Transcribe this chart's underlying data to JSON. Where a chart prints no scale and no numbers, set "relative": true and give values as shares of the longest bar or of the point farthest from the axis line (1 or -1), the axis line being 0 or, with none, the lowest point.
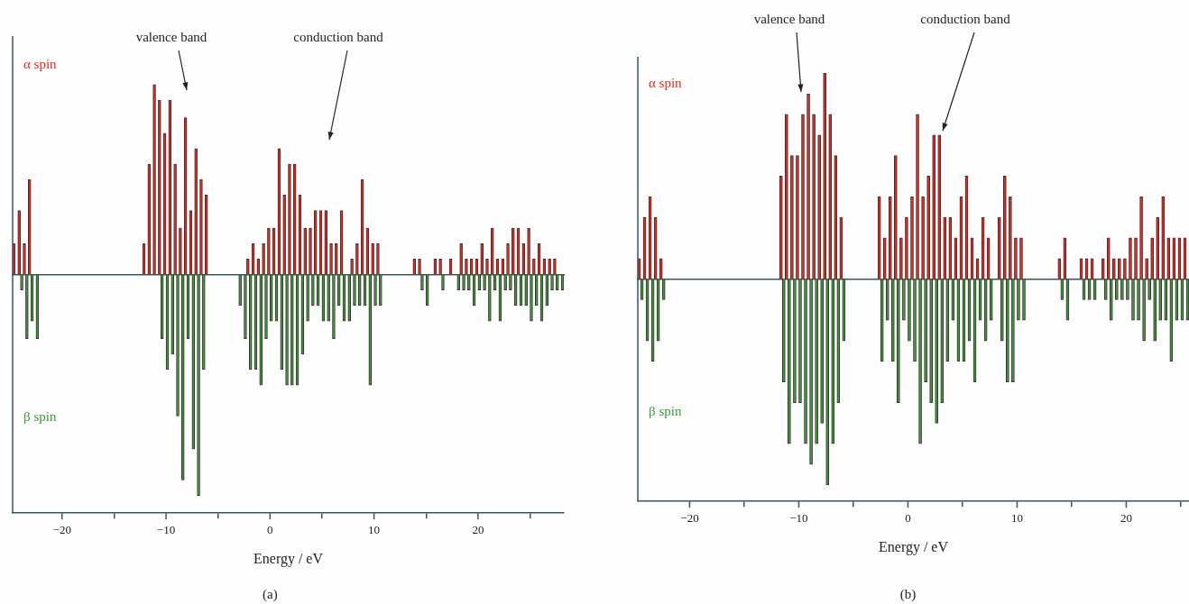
{
  "chart_data": [
    {
      "type": "bar",
      "relative": true,
      "xlabel": "Energy / eV",
      "xlim": [
        -24.75,
        28.25
      ],
      "xticks": [
        -20,
        -10,
        0,
        10,
        20
      ],
      "x": [
        -24.5,
        -24,
        -23.5,
        -23,
        -22.5,
        -12,
        -11.5,
        -11,
        -10.5,
        -10,
        -9.5,
        -9,
        -8.5,
        -8,
        -7.5,
        -7,
        -6.5,
        -6,
        -3,
        -2.5,
        -2,
        -1.5,
        -1,
        -0.5,
        0,
        0.5,
        1,
        1.5,
        2,
        2.5,
        3,
        3.5,
        4,
        4.5,
        5,
        5.5,
        6,
        6.5,
        7,
        7.5,
        8,
        8.5,
        9,
        9.5,
        10,
        10.5,
        14,
        14.5,
        15,
        16,
        16.5,
        17.5,
        18,
        18.5,
        19,
        19.5,
        20,
        20.5,
        21,
        21.5,
        22,
        22.5,
        23,
        23.5,
        24,
        24.5,
        25,
        25.5,
        26,
        26.5,
        27,
        27.5,
        28
      ],
      "series": [
        {
          "name": "α spin",
          "color": "#e8281e",
          "values": [
            0.14,
            0.29,
            0.14,
            0.43,
            null,
            0.14,
            0.5,
            0.86,
            0.79,
            0.64,
            0.79,
            0.5,
            0.21,
            0.71,
            0.29,
            0.57,
            0.43,
            0.36,
            null,
            null,
            0.07,
            0.14,
            0.07,
            0.14,
            0.21,
            0.21,
            0.57,
            0.36,
            0.5,
            0.5,
            0.36,
            0.21,
            0.21,
            0.29,
            0.29,
            0.29,
            0.14,
            0.14,
            0.29,
            null,
            0.07,
            0.14,
            0.43,
            0.21,
            0.14,
            0.14,
            0.07,
            0.07,
            null,
            0.07,
            0.07,
            0.07,
            null,
            0.14,
            0.07,
            0.07,
            0.07,
            0.14,
            0.07,
            0.21,
            0.07,
            0.07,
            0.14,
            0.21,
            0.21,
            0.14,
            0.21,
            0.07,
            0.14,
            0.07,
            0.07,
            0.07,
            null
          ]
        },
        {
          "name": "β spin",
          "color": "#3c9a3a",
          "values": [
            null,
            -0.07,
            -0.29,
            -0.21,
            -0.29,
            null,
            null,
            null,
            -0.29,
            -0.43,
            -0.36,
            -0.64,
            -0.93,
            -0.29,
            -0.79,
            -1,
            -0.43,
            null,
            -0.14,
            -0.29,
            -0.43,
            -0.43,
            -0.5,
            -0.29,
            -0.21,
            -0.21,
            -0.43,
            -0.5,
            -0.5,
            -0.5,
            -0.36,
            -0.21,
            -0.14,
            -0.14,
            -0.21,
            -0.21,
            -0.29,
            -0.14,
            -0.21,
            -0.21,
            -0.14,
            -0.14,
            -0.14,
            -0.5,
            -0.14,
            -0.14,
            null,
            -0.07,
            -0.14,
            null,
            -0.07,
            null,
            -0.07,
            -0.07,
            -0.07,
            -0.14,
            -0.07,
            -0.07,
            -0.21,
            -0.07,
            -0.21,
            -0.07,
            -0.07,
            -0.14,
            -0.14,
            -0.14,
            -0.21,
            -0.14,
            -0.21,
            -0.14,
            -0.07,
            -0.07,
            -0.07
          ]
        }
      ],
      "annotations": [
        "valence band",
        "conduction band",
        "(a)"
      ]
    },
    {
      "type": "bar",
      "relative": true,
      "xlabel": "Energy / eV",
      "xlim": [
        -24.75,
        25.75
      ],
      "xticks": [
        -20,
        -10,
        0,
        10,
        20
      ],
      "x": [
        -24.5,
        -24,
        -23.5,
        -23,
        -22.5,
        -11.5,
        -11,
        -10.5,
        -10,
        -9.5,
        -9,
        -8.5,
        -8,
        -7.5,
        -7,
        -6.5,
        -6,
        -2.5,
        -2,
        -1.5,
        -1,
        -0.5,
        0,
        0.5,
        1,
        1.5,
        2,
        2.5,
        3,
        3.5,
        4,
        4.5,
        5,
        5.5,
        6,
        6.5,
        7,
        7.5,
        8.5,
        9,
        9.5,
        10,
        10.5,
        14,
        14.5,
        16,
        16.5,
        17,
        18,
        18.5,
        19,
        19.5,
        20,
        20.5,
        21,
        21.5,
        22,
        22.5,
        23,
        23.5,
        24,
        24.5,
        25,
        25.5
      ],
      "series": [
        {
          "name": "α spin",
          "color": "#e8281e",
          "values": [
            0.1,
            0.3,
            0.4,
            0.3,
            0.1,
            0.5,
            0.8,
            0.6,
            0.6,
            0.8,
            0.9,
            0.8,
            0.7,
            1,
            0.8,
            0.6,
            0.3,
            0.4,
            0.2,
            0.4,
            0.6,
            0.2,
            0.3,
            0.4,
            0.8,
            0.4,
            0.5,
            0.7,
            0.7,
            0.3,
            0.3,
            0.2,
            0.4,
            0.5,
            0.2,
            0.1,
            0.3,
            0.2,
            0.3,
            0.5,
            0.4,
            0.2,
            0.2,
            0.1,
            0.2,
            0.1,
            0.1,
            0.1,
            0.1,
            0.2,
            0.1,
            0.1,
            0.1,
            0.2,
            0.2,
            0.4,
            0.1,
            0.2,
            0.3,
            0.4,
            0.2,
            0.2,
            0.2,
            0.2
          ]
        },
        {
          "name": "β spin",
          "color": "#3c9a3a",
          "values": [
            -0.1,
            -0.3,
            -0.4,
            -0.3,
            -0.1,
            -0.5,
            -0.8,
            -0.6,
            -0.6,
            -0.8,
            -0.9,
            -0.8,
            -0.7,
            -1,
            -0.8,
            -0.6,
            -0.3,
            -0.4,
            -0.2,
            -0.4,
            -0.6,
            -0.2,
            -0.3,
            -0.4,
            -0.8,
            -0.5,
            -0.6,
            -0.7,
            -0.6,
            -0.4,
            -0.2,
            -0.4,
            -0.4,
            -0.3,
            -0.5,
            -0.2,
            -0.3,
            -0.2,
            -0.3,
            -0.5,
            -0.5,
            -0.2,
            -0.2,
            -0.1,
            -0.2,
            -0.1,
            -0.1,
            -0.1,
            -0.1,
            -0.2,
            -0.1,
            -0.1,
            -0.1,
            -0.2,
            -0.2,
            -0.3,
            -0.1,
            -0.3,
            -0.2,
            -0.2,
            -0.4,
            -0.2,
            -0.2,
            -0.2
          ]
        }
      ],
      "annotations": [
        "valence band",
        "conduction band",
        "(b)"
      ]
    }
  ]
}
